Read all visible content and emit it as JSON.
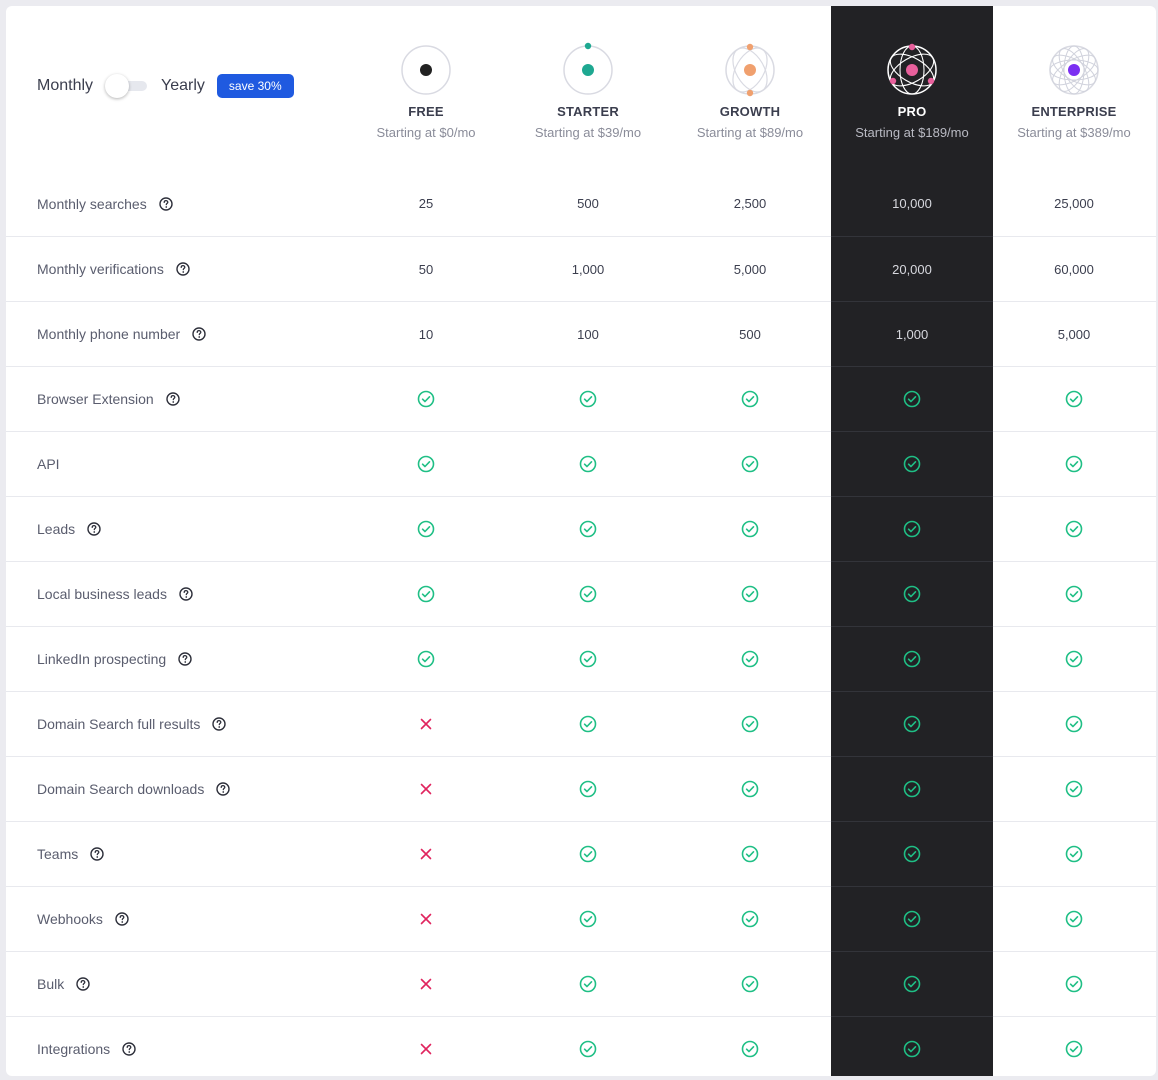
{
  "billing": {
    "monthly_label": "Monthly",
    "yearly_label": "Yearly",
    "save_badge": "save 30%"
  },
  "plans": [
    {
      "name": "FREE",
      "price": "Starting at $0/mo",
      "icon": "free-plan-icon",
      "accent": "#222222"
    },
    {
      "name": "STARTER",
      "price": "Starting at $39/mo",
      "icon": "starter-plan-icon",
      "accent": "#1ea891"
    },
    {
      "name": "GROWTH",
      "price": "Starting at $89/mo",
      "icon": "growth-plan-icon",
      "accent": "#f0a06e"
    },
    {
      "name": "PRO",
      "price": "Starting at $189/mo",
      "icon": "pro-plan-icon",
      "accent": "#e8609c"
    },
    {
      "name": "ENTERPRISE",
      "price": "Starting at $389/mo",
      "icon": "enterprise-plan-icon",
      "accent": "#7b2ff2"
    }
  ],
  "features": [
    {
      "label": "Monthly searches",
      "help": true,
      "values": [
        "25",
        "500",
        "2,500",
        "10,000",
        "25,000"
      ]
    },
    {
      "label": "Monthly verifications",
      "help": true,
      "values": [
        "50",
        "1,000",
        "5,000",
        "20,000",
        "60,000"
      ]
    },
    {
      "label": "Monthly phone number",
      "help": true,
      "values": [
        "10",
        "100",
        "500",
        "1,000",
        "5,000"
      ]
    },
    {
      "label": "Browser Extension",
      "help": true,
      "values": [
        "check",
        "check",
        "check",
        "check",
        "check"
      ]
    },
    {
      "label": "API",
      "help": false,
      "values": [
        "check",
        "check",
        "check",
        "check",
        "check"
      ]
    },
    {
      "label": "Leads",
      "help": true,
      "values": [
        "check",
        "check",
        "check",
        "check",
        "check"
      ]
    },
    {
      "label": "Local business leads",
      "help": true,
      "values": [
        "check",
        "check",
        "check",
        "check",
        "check"
      ]
    },
    {
      "label": "LinkedIn prospecting",
      "help": true,
      "values": [
        "check",
        "check",
        "check",
        "check",
        "check"
      ]
    },
    {
      "label": "Domain Search full results",
      "help": true,
      "values": [
        "cross",
        "check",
        "check",
        "check",
        "check"
      ]
    },
    {
      "label": "Domain Search downloads",
      "help": true,
      "values": [
        "cross",
        "check",
        "check",
        "check",
        "check"
      ]
    },
    {
      "label": "Teams",
      "help": true,
      "values": [
        "cross",
        "check",
        "check",
        "check",
        "check"
      ]
    },
    {
      "label": "Webhooks",
      "help": true,
      "values": [
        "cross",
        "check",
        "check",
        "check",
        "check"
      ]
    },
    {
      "label": "Bulk",
      "help": true,
      "values": [
        "cross",
        "check",
        "check",
        "check",
        "check"
      ]
    },
    {
      "label": "Integrations",
      "help": true,
      "values": [
        "cross",
        "check",
        "check",
        "check",
        "check"
      ]
    }
  ],
  "colors": {
    "check": "#1fbf85",
    "cross": "#e0245e",
    "highlight_column": "#222225",
    "badge": "#1f5ae0"
  }
}
